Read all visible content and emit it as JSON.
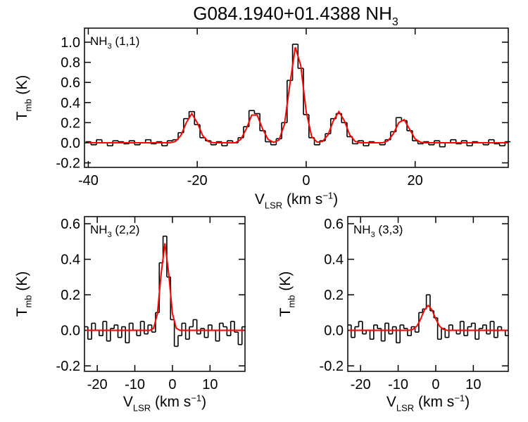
{
  "chart_data": [
    {
      "type": "line",
      "title": {
        "text": "G084.1940+01.4388 NH",
        "sub": "3"
      },
      "annotation": {
        "text": "NH",
        "sub": "3",
        "tail": " (1,1)"
      },
      "xlabel": {
        "text": "V",
        "sub": "LSR",
        "tail": " (km s",
        "sup": "−1",
        "end": ")"
      },
      "ylabel": {
        "text": "T",
        "sub": "mb",
        "tail": " (K)"
      },
      "xlim": [
        -40.7,
        37.1
      ],
      "ylim": [
        -0.245,
        1.14
      ],
      "xticks": [
        -40,
        -20,
        0,
        20
      ],
      "yticks": [
        -0.2,
        {
          "value": 0,
          "label": "0.0"
        },
        0.2,
        0.4,
        0.6,
        0.8,
        {
          "value": 1,
          "label": "1.0"
        }
      ],
      "x": [
        -40,
        -39,
        -38,
        -37,
        -36,
        -35,
        -34,
        -33,
        -32,
        -31,
        -30,
        -29,
        -28,
        -27,
        -26,
        -25,
        -24,
        -23,
        -22,
        -21,
        -20,
        -19,
        -18,
        -17,
        -16,
        -15,
        -14,
        -13,
        -12,
        -11,
        -10,
        -9,
        -8,
        -7,
        -6,
        -5,
        -4,
        -3,
        -2,
        -1,
        0,
        1,
        2,
        3,
        4,
        5,
        6,
        7,
        8,
        9,
        10,
        11,
        12,
        13,
        14,
        15,
        16,
        17,
        18,
        19,
        20,
        21,
        22,
        23,
        24,
        25,
        26,
        27,
        28,
        29,
        30,
        31,
        32,
        33,
        34,
        35,
        36,
        37
      ],
      "series": [
        {
          "color": "#000000",
          "step": true,
          "values": [
            0.01,
            -0.02,
            0.03,
            0.0,
            -0.03,
            0.02,
            0.01,
            -0.01,
            0.02,
            -0.02,
            0.0,
            0.03,
            -0.01,
            0.01,
            -0.03,
            0.02,
            0.03,
            0.1,
            0.24,
            0.31,
            0.18,
            0.05,
            0.02,
            -0.02,
            0.01,
            -0.03,
            0.02,
            0.0,
            0.05,
            0.16,
            0.32,
            0.29,
            0.12,
            0.01,
            -0.02,
            0.04,
            0.2,
            0.62,
            0.98,
            0.74,
            0.28,
            0.05,
            -0.02,
            0.02,
            0.09,
            0.24,
            0.29,
            0.2,
            0.06,
            -0.01,
            0.02,
            -0.03,
            0.01,
            0.0,
            -0.02,
            0.03,
            0.11,
            0.25,
            0.22,
            0.12,
            0.02,
            -0.01,
            0.01,
            -0.02,
            0.02,
            -0.04,
            0.0,
            0.03,
            -0.01,
            0.02,
            -0.03,
            0.01,
            0.0,
            -0.02,
            0.03,
            -0.01,
            -0.03,
            0.01
          ]
        },
        {
          "color": "#ff0000",
          "step": false,
          "values": [
            0,
            0,
            0,
            0,
            0,
            0,
            0,
            0,
            0,
            0,
            0,
            0,
            0,
            0,
            0,
            0,
            0.013,
            0.072,
            0.2,
            0.29,
            0.2,
            0.072,
            0.013,
            0,
            0,
            0,
            0,
            0,
            0.034,
            0.137,
            0.275,
            0.275,
            0.137,
            0.034,
            0.004,
            0.027,
            0.18,
            0.58,
            0.95,
            0.77,
            0.31,
            0.063,
            0.006,
            0.013,
            0.078,
            0.22,
            0.31,
            0.22,
            0.078,
            0.013,
            0,
            0,
            0,
            0,
            0,
            0.019,
            0.089,
            0.2,
            0.23,
            0.133,
            0.038,
            0.005,
            0,
            0,
            0,
            0,
            0,
            0,
            0,
            0,
            0,
            0,
            0,
            0,
            0,
            0,
            0,
            0
          ]
        }
      ]
    },
    {
      "type": "line",
      "annotation": {
        "text": "NH",
        "sub": "3",
        "tail": " (2,2)"
      },
      "xlabel": {
        "text": "V",
        "sub": "LSR",
        "tail": " (km s",
        "sup": "−1",
        "end": ")"
      },
      "ylabel": {
        "text": "T",
        "sub": "mb",
        "tail": " (K)"
      },
      "xlim": [
        -23.4,
        19.3
      ],
      "ylim": [
        -0.231,
        0.64
      ],
      "xticks": [
        -20,
        -10,
        0,
        10
      ],
      "yticks": [
        -0.2,
        {
          "value": 0,
          "label": "0.0"
        },
        0.2,
        0.4,
        0.6
      ],
      "x": [
        -23,
        -22,
        -21,
        -20,
        -19,
        -18,
        -17,
        -16,
        -15,
        -14,
        -13,
        -12,
        -11,
        -10,
        -9,
        -8,
        -7,
        -6,
        -5,
        -4,
        -3,
        -2,
        -1,
        0,
        1,
        2,
        3,
        4,
        5,
        6,
        7,
        8,
        9,
        10,
        11,
        12,
        13,
        14,
        15,
        16,
        17,
        18,
        19
      ],
      "series": [
        {
          "color": "#000000",
          "step": true,
          "values": [
            0.02,
            -0.05,
            0.04,
            0.0,
            -0.03,
            0.05,
            -0.06,
            0.01,
            0.03,
            -0.04,
            0.02,
            -0.07,
            0.04,
            0.0,
            -0.03,
            0.05,
            -0.02,
            0.03,
            -0.01,
            0.1,
            0.38,
            0.53,
            0.3,
            0.06,
            -0.09,
            -0.03,
            0.04,
            -0.05,
            0.02,
            0.06,
            -0.02,
            0.01,
            -0.04,
            0.03,
            0.0,
            -0.06,
            0.04,
            0.02,
            -0.03,
            0.05,
            -0.01,
            -0.08,
            0.02
          ]
        },
        {
          "color": "#ff0000",
          "step": false,
          "values": [
            0,
            0,
            0,
            0,
            0,
            0,
            0,
            0,
            0,
            0,
            0,
            0,
            0,
            0,
            0,
            0,
            0,
            0,
            0.012,
            0.094,
            0.32,
            0.49,
            0.32,
            0.094,
            0.012,
            0,
            0,
            0,
            0,
            0,
            0,
            0,
            0,
            0,
            0,
            0,
            0,
            0,
            0,
            0,
            0,
            0,
            0
          ]
        }
      ]
    },
    {
      "type": "line",
      "annotation": {
        "text": "NH",
        "sub": "3",
        "tail": " (3,3)"
      },
      "xlabel": {
        "text": "V",
        "sub": "LSR",
        "tail": " (km s",
        "sup": "−1",
        "end": ")"
      },
      "ylabel": {
        "text": "T",
        "sub": "mb",
        "tail": " (K)"
      },
      "xlim": [
        -23.4,
        19.3
      ],
      "ylim": [
        -0.231,
        0.64
      ],
      "xticks": [
        -20,
        -10,
        0,
        10
      ],
      "yticks": [
        -0.2,
        {
          "value": 0,
          "label": "0.0"
        },
        0.2,
        0.4,
        0.6
      ],
      "x": [
        -23,
        -22,
        -21,
        -20,
        -19,
        -18,
        -17,
        -16,
        -15,
        -14,
        -13,
        -12,
        -11,
        -10,
        -9,
        -8,
        -7,
        -6,
        -5,
        -4,
        -3,
        -2,
        -1,
        0,
        1,
        2,
        3,
        4,
        5,
        6,
        7,
        8,
        9,
        10,
        11,
        12,
        13,
        14,
        15,
        16,
        17,
        18,
        19
      ],
      "series": [
        {
          "color": "#000000",
          "step": true,
          "values": [
            0.03,
            -0.04,
            0.02,
            0.05,
            -0.02,
            0.0,
            -0.05,
            0.03,
            0.01,
            -0.06,
            0.04,
            -0.02,
            0.02,
            -0.07,
            0.03,
            0.01,
            -0.03,
            0.02,
            -0.01,
            0.1,
            0.12,
            0.2,
            0.11,
            0.07,
            -0.05,
            0.01,
            -0.04,
            0.03,
            0.0,
            -0.02,
            0.05,
            -0.03,
            0.02,
            0.04,
            -0.05,
            0.01,
            0.03,
            -0.02,
            0.05,
            -0.04,
            0.02,
            0.0,
            -0.03
          ]
        },
        {
          "color": "#ff0000",
          "step": false,
          "values": [
            0,
            0,
            0,
            0,
            0,
            0,
            0,
            0,
            0,
            0,
            0,
            0,
            0,
            0,
            0,
            0,
            0,
            0.006,
            0.024,
            0.064,
            0.115,
            0.14,
            0.115,
            0.064,
            0.024,
            0.006,
            0,
            0,
            0,
            0,
            0,
            0,
            0,
            0,
            0,
            0,
            0,
            0,
            0,
            0,
            0,
            0,
            0
          ]
        }
      ]
    }
  ]
}
